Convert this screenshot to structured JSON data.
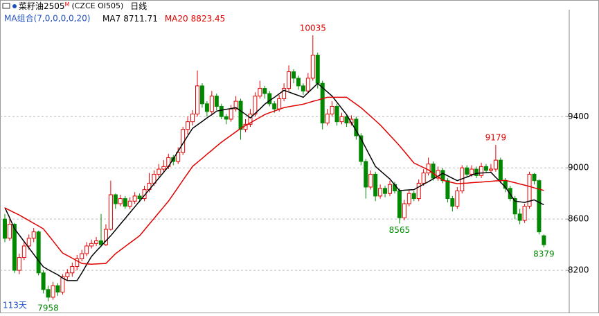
{
  "chart_data": {
    "type": "candlestick",
    "symbol": "菜籽油2505",
    "symbol_suffix": "M",
    "code": "(CZCE OI505)",
    "period": "日线",
    "indicator": "MA组合(7,0,0,0,0,20)",
    "days_label": "113天",
    "up_color": "#e00000",
    "down_color": "#008800",
    "ylim": [
      7865,
      10240
    ],
    "yticks": [
      8200,
      8600,
      9000,
      9400
    ],
    "grid": true,
    "labeled_highs": [
      64,
      102
    ],
    "labeled_lows": [
      9,
      82,
      112
    ],
    "candles": [
      [
        8600,
        8640,
        8420,
        8450
      ],
      [
        8450,
        8600,
        8430,
        8560
      ],
      [
        8560,
        8570,
        8180,
        8200
      ],
      [
        8200,
        8330,
        8170,
        8300
      ],
      [
        8300,
        8420,
        8280,
        8390
      ],
      [
        8390,
        8480,
        8360,
        8450
      ],
      [
        8450,
        8530,
        8420,
        8500
      ],
      [
        8500,
        8510,
        8160,
        8180
      ],
      [
        8180,
        8200,
        8020,
        8050
      ],
      [
        8050,
        8080,
        7958,
        7990
      ],
      [
        7990,
        8110,
        7970,
        8080
      ],
      [
        8080,
        8100,
        8000,
        8030
      ],
      [
        8030,
        8170,
        8010,
        8150
      ],
      [
        8150,
        8210,
        8120,
        8180
      ],
      [
        8180,
        8260,
        8150,
        8230
      ],
      [
        8230,
        8320,
        8200,
        8290
      ],
      [
        8290,
        8360,
        8270,
        8330
      ],
      [
        8330,
        8420,
        8310,
        8390
      ],
      [
        8390,
        8440,
        8370,
        8410
      ],
      [
        8410,
        8460,
        8390,
        8430
      ],
      [
        8430,
        8640,
        8380,
        8400
      ],
      [
        8400,
        8560,
        8390,
        8520
      ],
      [
        8520,
        8900,
        8510,
        8790
      ],
      [
        8790,
        8800,
        8680,
        8720
      ],
      [
        8720,
        8790,
        8700,
        8760
      ],
      [
        8760,
        8780,
        8680,
        8700
      ],
      [
        8700,
        8770,
        8680,
        8740
      ],
      [
        8740,
        8810,
        8720,
        8780
      ],
      [
        8780,
        8800,
        8730,
        8760
      ],
      [
        8760,
        8860,
        8740,
        8830
      ],
      [
        8830,
        8960,
        8810,
        8880
      ],
      [
        8880,
        8980,
        8860,
        8950
      ],
      [
        8950,
        9030,
        8930,
        8990
      ],
      [
        8990,
        9060,
        8960,
        9010
      ],
      [
        9010,
        9110,
        8990,
        9080
      ],
      [
        9080,
        9100,
        9020,
        9050
      ],
      [
        9050,
        9160,
        9030,
        9120
      ],
      [
        9120,
        9320,
        9100,
        9300
      ],
      [
        9300,
        9400,
        9260,
        9360
      ],
      [
        9360,
        9450,
        9330,
        9420
      ],
      [
        9420,
        9760,
        9400,
        9640
      ],
      [
        9640,
        9660,
        9470,
        9500
      ],
      [
        9500,
        9520,
        9400,
        9440
      ],
      [
        9440,
        9600,
        9420,
        9560
      ],
      [
        9560,
        9580,
        9450,
        9480
      ],
      [
        9480,
        9500,
        9380,
        9400
      ],
      [
        9400,
        9420,
        9340,
        9380
      ],
      [
        9380,
        9490,
        9360,
        9460
      ],
      [
        9460,
        9560,
        9440,
        9520
      ],
      [
        9520,
        9540,
        9220,
        9300
      ],
      [
        9300,
        9380,
        9280,
        9340
      ],
      [
        9340,
        9460,
        9320,
        9420
      ],
      [
        9420,
        9590,
        9400,
        9560
      ],
      [
        9560,
        9680,
        9540,
        9620
      ],
      [
        9620,
        9640,
        9540,
        9580
      ],
      [
        9580,
        9600,
        9480,
        9500
      ],
      [
        9500,
        9520,
        9430,
        9460
      ],
      [
        9460,
        9570,
        9440,
        9540
      ],
      [
        9540,
        9660,
        9520,
        9620
      ],
      [
        9620,
        9800,
        9600,
        9750
      ],
      [
        9750,
        9770,
        9660,
        9700
      ],
      [
        9700,
        9720,
        9610,
        9640
      ],
      [
        9640,
        9660,
        9570,
        9600
      ],
      [
        9600,
        9740,
        9580,
        9700
      ],
      [
        9700,
        10035,
        9680,
        9880
      ],
      [
        9880,
        9900,
        9620,
        9660
      ],
      [
        9660,
        9680,
        9300,
        9350
      ],
      [
        9350,
        9460,
        9330,
        9420
      ],
      [
        9420,
        9520,
        9400,
        9480
      ],
      [
        9480,
        9500,
        9330,
        9360
      ],
      [
        9360,
        9430,
        9340,
        9400
      ],
      [
        9400,
        9420,
        9320,
        9350
      ],
      [
        9350,
        9410,
        9330,
        9380
      ],
      [
        9380,
        9400,
        9220,
        9250
      ],
      [
        9250,
        9270,
        9020,
        9050
      ],
      [
        9050,
        9070,
        8760,
        8850
      ],
      [
        8850,
        8980,
        8830,
        8950
      ],
      [
        8950,
        8970,
        8740,
        8780
      ],
      [
        8780,
        8870,
        8760,
        8840
      ],
      [
        8840,
        8860,
        8770,
        8800
      ],
      [
        8800,
        8900,
        8780,
        8870
      ],
      [
        8870,
        8890,
        8800,
        8820
      ],
      [
        8820,
        8840,
        8565,
        8610
      ],
      [
        8610,
        8750,
        8590,
        8720
      ],
      [
        8720,
        8830,
        8700,
        8800
      ],
      [
        8800,
        8820,
        8740,
        8760
      ],
      [
        8760,
        8910,
        8740,
        8880
      ],
      [
        8880,
        8990,
        8860,
        8960
      ],
      [
        8960,
        9080,
        8940,
        9030
      ],
      [
        9030,
        9050,
        8900,
        8920
      ],
      [
        8920,
        9010,
        8900,
        8980
      ],
      [
        8980,
        9000,
        8880,
        8900
      ],
      [
        8900,
        8920,
        8730,
        8760
      ],
      [
        8760,
        8780,
        8660,
        8700
      ],
      [
        8700,
        8850,
        8680,
        8820
      ],
      [
        8820,
        9020,
        8800,
        9000
      ],
      [
        9000,
        9020,
        8930,
        8950
      ],
      [
        8950,
        9020,
        8930,
        8990
      ],
      [
        8990,
        9010,
        8920,
        8940
      ],
      [
        8940,
        9040,
        8920,
        9010
      ],
      [
        9010,
        9030,
        8960,
        8980
      ],
      [
        8980,
        9030,
        8960,
        8990
      ],
      [
        8990,
        9179,
        8970,
        9060
      ],
      [
        9060,
        9080,
        8880,
        8900
      ],
      [
        8900,
        8920,
        8810,
        8840
      ],
      [
        8840,
        8860,
        8740,
        8760
      ],
      [
        8760,
        8780,
        8600,
        8640
      ],
      [
        8640,
        8680,
        8560,
        8590
      ],
      [
        8590,
        8720,
        8570,
        8700
      ],
      [
        8700,
        8970,
        8680,
        8950
      ],
      [
        8950,
        8960,
        8870,
        8900
      ],
      [
        8900,
        8910,
        8480,
        8500
      ],
      [
        8470,
        8480,
        8379,
        8400
      ]
    ],
    "series": [
      {
        "name": "MA7",
        "color": "#000000",
        "latest": 8711.71,
        "values": [
          8690,
          8610,
          8525,
          8475,
          8425,
          8375,
          8325,
          8275,
          8227,
          8205,
          8185,
          8165,
          8140,
          8120,
          8120,
          8120,
          8180,
          8245,
          8308,
          8350,
          8390,
          8430,
          8470,
          8515,
          8560,
          8605,
          8650,
          8695,
          8740,
          8785,
          8830,
          8875,
          8920,
          8965,
          9011,
          9070,
          9130,
          9190,
          9250,
          9308,
          9335,
          9362,
          9390,
          9415,
          9443,
          9450,
          9457,
          9463,
          9470,
          9445,
          9418,
          9390,
          9425,
          9460,
          9497,
          9525,
          9550,
          9578,
          9605,
          9592,
          9578,
          9565,
          9551,
          9587,
          9623,
          9659,
          9626,
          9593,
          9560,
          9512,
          9464,
          9416,
          9353,
          9290,
          9227,
          9155,
          9083,
          9011,
          8978,
          8945,
          8913,
          8868,
          8822,
          8825,
          8828,
          8830,
          8851,
          8872,
          8892,
          8914,
          8935,
          8957,
          8938,
          8919,
          8900,
          8914,
          8928,
          8943,
          8957,
          8960,
          8962,
          8965,
          8926,
          8888,
          8849,
          8795,
          8740,
          8735,
          8730,
          8740,
          8750,
          8730,
          8711.71
        ]
      },
      {
        "name": "MA20",
        "color": "#e00000",
        "latest": 8823.45,
        "values": [
          8687,
          8669,
          8650,
          8632,
          8610,
          8589,
          8567,
          8546,
          8524,
          8477,
          8430,
          8382,
          8335,
          8315,
          8295,
          8274,
          8254,
          8250,
          8248,
          8250,
          8252,
          8254,
          8292,
          8330,
          8358,
          8386,
          8414,
          8442,
          8470,
          8515,
          8560,
          8605,
          8650,
          8695,
          8740,
          8794,
          8848,
          8903,
          8957,
          9011,
          9043,
          9074,
          9106,
          9137,
          9169,
          9200,
          9227,
          9254,
          9281,
          9308,
          9330,
          9351,
          9373,
          9394,
          9416,
          9430,
          9443,
          9457,
          9470,
          9477,
          9484,
          9490,
          9497,
          9508,
          9519,
          9529,
          9540,
          9551,
          9551,
          9551,
          9551,
          9551,
          9524,
          9497,
          9470,
          9436,
          9403,
          9369,
          9335,
          9295,
          9254,
          9214,
          9173,
          9128,
          9083,
          9038,
          9020,
          9002,
          8984,
          8957,
          8930,
          8903,
          8894,
          8885,
          8876,
          8879,
          8881,
          8884,
          8887,
          8889,
          8892,
          8895,
          8898,
          8900,
          8903,
          8893,
          8884,
          8874,
          8865,
          8855,
          8844,
          8834,
          8823.45
        ]
      }
    ]
  }
}
